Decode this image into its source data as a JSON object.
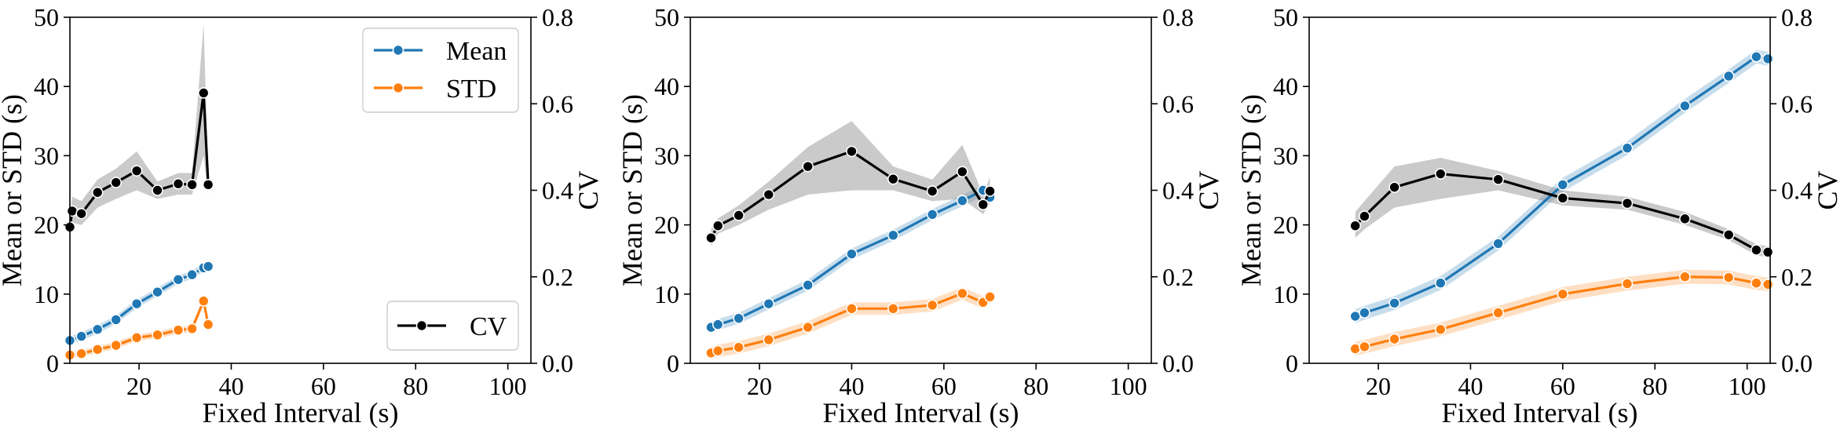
{
  "colors": {
    "mean": "#1f77b4",
    "std": "#ff7f0e",
    "cv": "#000000",
    "band_cv": "#808080"
  },
  "chart_data": [
    {
      "type": "line",
      "xlabel": "Fixed Interval (s)",
      "ylabel": "Mean or STD (s)",
      "y2label": "CV",
      "xlim": [
        5,
        105
      ],
      "ylim": [
        0,
        50
      ],
      "y2lim": [
        0,
        0.8
      ],
      "xticks": [
        20,
        40,
        60,
        80,
        100
      ],
      "yticks": [
        0,
        10,
        20,
        30,
        40,
        50
      ],
      "y2ticks": [
        "0.0",
        "0.2",
        "0.4",
        "0.6",
        "0.8"
      ],
      "grid": false,
      "legend": {
        "left_axis": "top-right",
        "right_axis": "bottom-right",
        "entries": [
          "Mean",
          "STD"
        ],
        "right_entries": [
          "CV"
        ]
      },
      "series": [
        {
          "name": "Mean",
          "axis": "left",
          "color": "#1f77b4",
          "x": [
            5,
            7.5,
            11,
            15,
            19.5,
            24,
            28.5,
            31.5,
            34,
            35
          ],
          "y": [
            3.3,
            3.9,
            4.9,
            6.3,
            8.6,
            10.3,
            12.1,
            12.8,
            13.8,
            14.0
          ],
          "band": 0.6
        },
        {
          "name": "STD",
          "axis": "left",
          "color": "#ff7f0e",
          "x": [
            5,
            7.5,
            11,
            15,
            19.5,
            24,
            28.5,
            31.5,
            34,
            35
          ],
          "y": [
            1.2,
            1.4,
            2.0,
            2.6,
            3.7,
            4.1,
            4.8,
            5.0,
            9.0,
            5.6
          ],
          "band": 0.5
        },
        {
          "name": "CV",
          "axis": "right",
          "color": "#000000",
          "x": [
            5,
            5.5,
            7.5,
            11,
            15,
            19.5,
            24,
            28.5,
            31.5,
            34,
            35
          ],
          "y": [
            0.315,
            0.352,
            0.346,
            0.395,
            0.418,
            0.445,
            0.4,
            0.415,
            0.413,
            0.625,
            0.413
          ],
          "band_lo": [
            0.29,
            0.325,
            0.32,
            0.36,
            0.38,
            0.4,
            0.38,
            0.39,
            0.39,
            0.48,
            0.39
          ],
          "band_hi": [
            0.34,
            0.385,
            0.375,
            0.425,
            0.45,
            0.49,
            0.42,
            0.44,
            0.44,
            0.785,
            0.44
          ]
        }
      ]
    },
    {
      "type": "line",
      "xlabel": "Fixed Interval (s)",
      "ylabel": "Mean or STD (s)",
      "y2label": "CV",
      "xlim": [
        5,
        105
      ],
      "ylim": [
        0,
        50
      ],
      "y2lim": [
        0,
        0.8
      ],
      "xticks": [
        20,
        40,
        60,
        80,
        100
      ],
      "yticks": [
        0,
        10,
        20,
        30,
        40,
        50
      ],
      "y2ticks": [
        "0.0",
        "0.2",
        "0.4",
        "0.6",
        "0.8"
      ],
      "grid": false,
      "series": [
        {
          "name": "Mean",
          "axis": "left",
          "color": "#1f77b4",
          "x": [
            9.5,
            11,
            15.5,
            22,
            30.5,
            40,
            49,
            57.5,
            64,
            68.5,
            70
          ],
          "y": [
            5.2,
            5.6,
            6.5,
            8.6,
            11.3,
            15.8,
            18.5,
            21.5,
            23.5,
            25.0,
            24.0
          ],
          "band": 0.8
        },
        {
          "name": "STD",
          "axis": "left",
          "color": "#ff7f0e",
          "x": [
            9.5,
            11,
            15.5,
            22,
            30.5,
            40,
            49,
            57.5,
            64,
            68.5,
            70
          ],
          "y": [
            1.5,
            1.8,
            2.3,
            3.4,
            5.2,
            7.9,
            7.9,
            8.4,
            10.1,
            8.8,
            9.6
          ],
          "band": 0.9
        },
        {
          "name": "CV",
          "axis": "right",
          "color": "#000000",
          "x": [
            9.5,
            11,
            15.5,
            22,
            30.5,
            40,
            49,
            57.5,
            64,
            68.5,
            70
          ],
          "y": [
            0.29,
            0.318,
            0.342,
            0.39,
            0.455,
            0.49,
            0.426,
            0.398,
            0.443,
            0.367,
            0.398
          ],
          "band_lo": [
            0.27,
            0.3,
            0.32,
            0.355,
            0.39,
            0.4,
            0.4,
            0.375,
            0.38,
            0.345,
            0.37
          ],
          "band_hi": [
            0.31,
            0.335,
            0.365,
            0.42,
            0.5,
            0.56,
            0.455,
            0.425,
            0.505,
            0.39,
            0.43
          ]
        }
      ]
    },
    {
      "type": "line",
      "xlabel": "Fixed Interval (s)",
      "ylabel": "Mean or STD (s)",
      "y2label": "CV",
      "xlim": [
        5,
        105
      ],
      "ylim": [
        0,
        50
      ],
      "y2lim": [
        0,
        0.8
      ],
      "xticks": [
        20,
        40,
        60,
        80,
        100
      ],
      "yticks": [
        0,
        10,
        20,
        30,
        40,
        50
      ],
      "y2ticks": [
        "0.0",
        "0.2",
        "0.4",
        "0.6",
        "0.8"
      ],
      "grid": false,
      "series": [
        {
          "name": "Mean",
          "axis": "left",
          "color": "#1f77b4",
          "x": [
            15,
            17,
            23.5,
            33.5,
            46,
            60,
            74,
            86.5,
            96,
            102,
            104.5
          ],
          "y": [
            6.8,
            7.3,
            8.7,
            11.6,
            17.3,
            25.8,
            31.1,
            37.2,
            41.5,
            44.3,
            44.0
          ],
          "band": 1.0
        },
        {
          "name": "STD",
          "axis": "left",
          "color": "#ff7f0e",
          "x": [
            15,
            17,
            23.5,
            33.5,
            46,
            60,
            74,
            86.5,
            96,
            102,
            104.5
          ],
          "y": [
            2.1,
            2.4,
            3.5,
            4.9,
            7.3,
            10.0,
            11.5,
            12.5,
            12.4,
            11.6,
            11.4
          ],
          "band": 1.0
        },
        {
          "name": "CV",
          "axis": "right",
          "color": "#000000",
          "x": [
            15,
            17,
            23.5,
            33.5,
            46,
            60,
            74,
            86.5,
            96,
            102,
            104.5
          ],
          "y": [
            0.318,
            0.34,
            0.407,
            0.438,
            0.425,
            0.382,
            0.37,
            0.334,
            0.297,
            0.262,
            0.257
          ],
          "band_lo": [
            0.29,
            0.31,
            0.36,
            0.38,
            0.4,
            0.365,
            0.355,
            0.32,
            0.285,
            0.25,
            0.245
          ],
          "band_hi": [
            0.35,
            0.375,
            0.455,
            0.475,
            0.445,
            0.4,
            0.385,
            0.35,
            0.31,
            0.275,
            0.27
          ]
        }
      ]
    }
  ]
}
